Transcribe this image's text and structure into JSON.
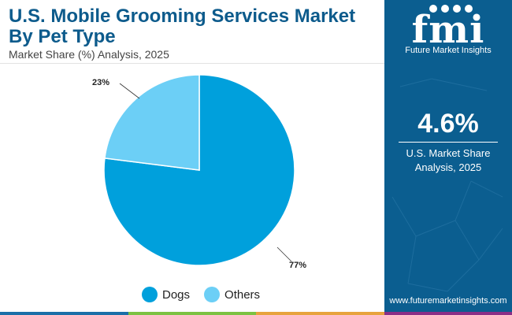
{
  "header": {
    "title": "U.S. Mobile Grooming Services Market By Pet Type",
    "subtitle": "Market Share (%) Analysis, 2025"
  },
  "chart_data": {
    "type": "pie",
    "title": "U.S. Mobile Grooming Services Market By Pet Type",
    "subtitle": "Market Share (%) Analysis, 2025",
    "slices": [
      {
        "label": "Dogs",
        "value": 77,
        "display": "77%",
        "color": "#00a0dc"
      },
      {
        "label": "Others",
        "value": 23,
        "display": "23%",
        "color": "#6ccff6"
      }
    ],
    "legend_position": "bottom"
  },
  "sidebar": {
    "logo_text": "fmi",
    "logo_caption": "Future Market Insights",
    "stat_value": "4.6%",
    "stat_caption_line1": "U.S. Market Share",
    "stat_caption_line2": "Analysis, 2025",
    "website": "www.futuremarketinsights.com",
    "background_color": "#0b5e90"
  },
  "bottom_bar_colors": [
    "#1a6fa8",
    "#7cc242",
    "#e8a33d",
    "#8b2f87"
  ]
}
